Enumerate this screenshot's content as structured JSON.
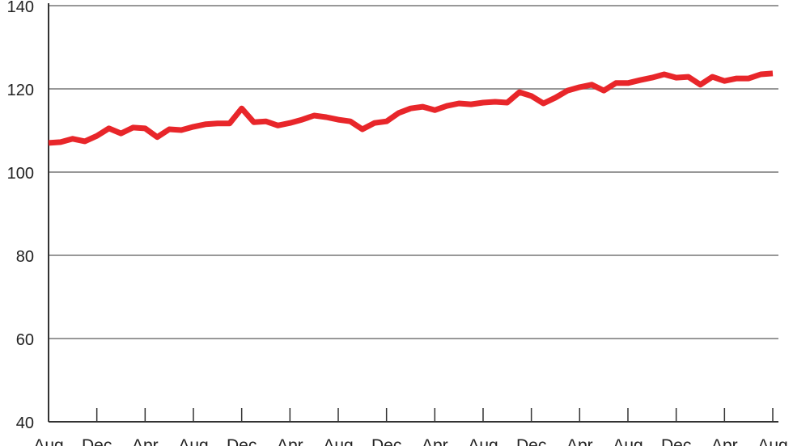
{
  "chart_data": {
    "type": "line",
    "title": "",
    "xlabel": "",
    "ylabel": "",
    "ylim": [
      40,
      140
    ],
    "yticks": [
      40,
      60,
      80,
      100,
      120,
      140
    ],
    "xtick_labels": [
      "Aug",
      "Dec",
      "Apr",
      "Aug",
      "Dec",
      "Apr",
      "Aug",
      "Dec",
      "Apr",
      "Aug",
      "Dec",
      "Apr",
      "Aug",
      "Dec",
      "Apr",
      "Aug"
    ],
    "grid": "horizontal",
    "line_color": "#e8262a",
    "values": [
      107.0,
      107.2,
      108.0,
      107.4,
      108.7,
      110.5,
      109.3,
      110.7,
      110.5,
      108.4,
      110.3,
      110.1,
      110.9,
      111.5,
      111.7,
      111.7,
      115.3,
      112.0,
      112.2,
      111.2,
      111.8,
      112.6,
      113.6,
      113.2,
      112.6,
      112.2,
      110.3,
      111.8,
      112.2,
      114.2,
      115.3,
      115.7,
      114.9,
      115.9,
      116.5,
      116.3,
      116.7,
      116.9,
      116.7,
      119.2,
      118.3,
      116.5,
      117.9,
      119.6,
      120.4,
      121.0,
      119.6,
      121.4,
      121.4,
      122.1,
      122.7,
      123.5,
      122.7,
      122.9,
      121.0,
      122.9,
      121.9,
      122.5,
      122.5,
      123.5,
      123.7
    ]
  }
}
